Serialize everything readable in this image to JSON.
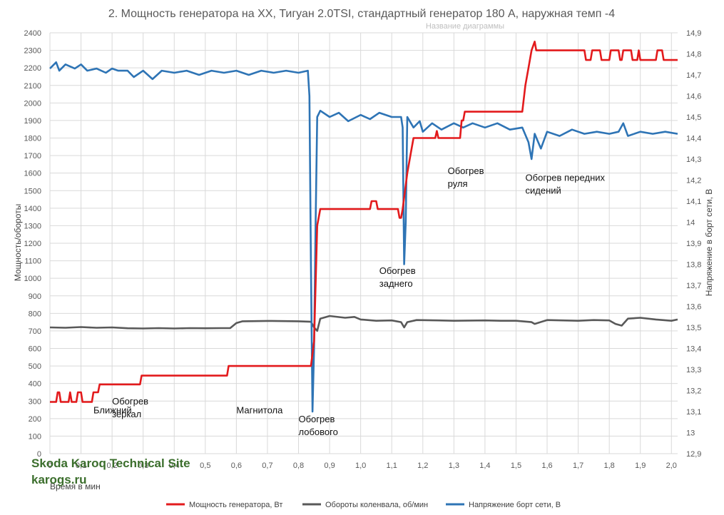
{
  "chart_data": {
    "type": "line",
    "title": "2. Мощность генератора на ХХ, Тигуан 2.0TSI, стандартный генератор 180 А, наружная темп -4",
    "ghost_title": "Название диаграммы",
    "xlabel": "Время в мин",
    "ylabel": "Мощность/обороты",
    "y2label": "Напряжение в борт сети, В",
    "xlim": [
      0,
      2.02
    ],
    "ylim": [
      0,
      2400
    ],
    "y2lim": [
      12.9,
      14.9
    ],
    "x_ticks": [
      "0",
      "0,1",
      "0,2",
      "0,3",
      "0,4",
      "0,5",
      "0,6",
      "0,7",
      "0,8",
      "0,9",
      "1,0",
      "1,1",
      "1,2",
      "1,3",
      "1,4",
      "1,5",
      "1,6",
      "1,7",
      "1,8",
      "1,9",
      "2,0"
    ],
    "y_ticks": [
      "0",
      "100",
      "200",
      "300",
      "400",
      "500",
      "600",
      "700",
      "800",
      "900",
      "1000",
      "1100",
      "1200",
      "1300",
      "1400",
      "1500",
      "1600",
      "1700",
      "1800",
      "1900",
      "2000",
      "2100",
      "2200",
      "2300",
      "2400"
    ],
    "y2_ticks": [
      "12,9",
      "13",
      "13,1",
      "13,2",
      "13,3",
      "13,4",
      "13,5",
      "13,6",
      "13,7",
      "13,8",
      "13,9",
      "14",
      "14,1",
      "14,2",
      "14,3",
      "14,4",
      "14,5",
      "14,6",
      "14,7",
      "14,8",
      "14,9"
    ],
    "grid": true,
    "legend_position": "bottom",
    "series": [
      {
        "name": "Мощность генератора, Вт",
        "axis": "left",
        "color": "#e31a1c",
        "points": [
          [
            0,
            295
          ],
          [
            0.02,
            295
          ],
          [
            0.025,
            350
          ],
          [
            0.03,
            350
          ],
          [
            0.035,
            295
          ],
          [
            0.06,
            295
          ],
          [
            0.065,
            350
          ],
          [
            0.07,
            295
          ],
          [
            0.085,
            295
          ],
          [
            0.09,
            350
          ],
          [
            0.1,
            350
          ],
          [
            0.105,
            295
          ],
          [
            0.135,
            295
          ],
          [
            0.14,
            350
          ],
          [
            0.155,
            350
          ],
          [
            0.16,
            395
          ],
          [
            0.29,
            395
          ],
          [
            0.295,
            445
          ],
          [
            0.57,
            445
          ],
          [
            0.575,
            500
          ],
          [
            0.84,
            500
          ],
          [
            0.85,
            640
          ],
          [
            0.86,
            1300
          ],
          [
            0.87,
            1395
          ],
          [
            1.03,
            1395
          ],
          [
            1.035,
            1440
          ],
          [
            1.05,
            1440
          ],
          [
            1.055,
            1395
          ],
          [
            1.12,
            1395
          ],
          [
            1.125,
            1345
          ],
          [
            1.13,
            1345
          ],
          [
            1.135,
            1395
          ],
          [
            1.15,
            1600
          ],
          [
            1.16,
            1700
          ],
          [
            1.17,
            1800
          ],
          [
            1.24,
            1800
          ],
          [
            1.245,
            1840
          ],
          [
            1.25,
            1800
          ],
          [
            1.32,
            1800
          ],
          [
            1.325,
            1900
          ],
          [
            1.33,
            1900
          ],
          [
            1.335,
            1950
          ],
          [
            1.52,
            1950
          ],
          [
            1.53,
            2100
          ],
          [
            1.54,
            2200
          ],
          [
            1.55,
            2300
          ],
          [
            1.56,
            2350
          ],
          [
            1.565,
            2300
          ],
          [
            1.72,
            2300
          ],
          [
            1.725,
            2245
          ],
          [
            1.74,
            2245
          ],
          [
            1.745,
            2300
          ],
          [
            1.77,
            2300
          ],
          [
            1.775,
            2245
          ],
          [
            1.8,
            2245
          ],
          [
            1.805,
            2300
          ],
          [
            1.83,
            2300
          ],
          [
            1.835,
            2245
          ],
          [
            1.84,
            2245
          ],
          [
            1.845,
            2300
          ],
          [
            1.87,
            2300
          ],
          [
            1.875,
            2245
          ],
          [
            1.89,
            2245
          ],
          [
            1.895,
            2300
          ],
          [
            1.9,
            2245
          ],
          [
            1.95,
            2245
          ],
          [
            1.955,
            2300
          ],
          [
            1.97,
            2300
          ],
          [
            1.975,
            2245
          ],
          [
            2.02,
            2245
          ]
        ]
      },
      {
        "name": "Обороты коленвала, об/мин",
        "axis": "left",
        "color": "#595959",
        "points": [
          [
            0,
            720
          ],
          [
            0.05,
            718
          ],
          [
            0.1,
            722
          ],
          [
            0.15,
            718
          ],
          [
            0.2,
            720
          ],
          [
            0.25,
            715
          ],
          [
            0.3,
            714
          ],
          [
            0.35,
            716
          ],
          [
            0.4,
            714
          ],
          [
            0.45,
            716
          ],
          [
            0.5,
            715
          ],
          [
            0.55,
            716
          ],
          [
            0.58,
            716
          ],
          [
            0.6,
            745
          ],
          [
            0.62,
            755
          ],
          [
            0.7,
            757
          ],
          [
            0.8,
            755
          ],
          [
            0.84,
            752
          ],
          [
            0.85,
            720
          ],
          [
            0.86,
            700
          ],
          [
            0.87,
            770
          ],
          [
            0.9,
            785
          ],
          [
            0.95,
            775
          ],
          [
            0.98,
            780
          ],
          [
            1.0,
            765
          ],
          [
            1.05,
            758
          ],
          [
            1.1,
            760
          ],
          [
            1.13,
            750
          ],
          [
            1.14,
            720
          ],
          [
            1.15,
            750
          ],
          [
            1.18,
            762
          ],
          [
            1.25,
            760
          ],
          [
            1.3,
            758
          ],
          [
            1.4,
            760
          ],
          [
            1.45,
            758
          ],
          [
            1.5,
            758
          ],
          [
            1.55,
            750
          ],
          [
            1.56,
            740
          ],
          [
            1.6,
            762
          ],
          [
            1.65,
            760
          ],
          [
            1.7,
            758
          ],
          [
            1.75,
            762
          ],
          [
            1.8,
            760
          ],
          [
            1.82,
            740
          ],
          [
            1.84,
            730
          ],
          [
            1.86,
            770
          ],
          [
            1.9,
            775
          ],
          [
            1.95,
            765
          ],
          [
            2.0,
            758
          ],
          [
            2.02,
            765
          ]
        ]
      },
      {
        "name": "Напряжение борт сети, В",
        "axis": "right",
        "color": "#2e74b5",
        "points": [
          [
            0,
            14.73
          ],
          [
            0.02,
            14.76
          ],
          [
            0.03,
            14.72
          ],
          [
            0.05,
            14.75
          ],
          [
            0.08,
            14.73
          ],
          [
            0.1,
            14.75
          ],
          [
            0.12,
            14.72
          ],
          [
            0.15,
            14.73
          ],
          [
            0.18,
            14.71
          ],
          [
            0.2,
            14.73
          ],
          [
            0.22,
            14.72
          ],
          [
            0.25,
            14.72
          ],
          [
            0.27,
            14.69
          ],
          [
            0.3,
            14.72
          ],
          [
            0.33,
            14.68
          ],
          [
            0.36,
            14.72
          ],
          [
            0.4,
            14.71
          ],
          [
            0.44,
            14.72
          ],
          [
            0.48,
            14.7
          ],
          [
            0.52,
            14.72
          ],
          [
            0.56,
            14.71
          ],
          [
            0.6,
            14.72
          ],
          [
            0.64,
            14.7
          ],
          [
            0.68,
            14.72
          ],
          [
            0.72,
            14.71
          ],
          [
            0.76,
            14.72
          ],
          [
            0.8,
            14.71
          ],
          [
            0.83,
            14.72
          ],
          [
            0.835,
            14.6
          ],
          [
            0.84,
            13.8
          ],
          [
            0.845,
            13.1
          ],
          [
            0.85,
            13.4
          ],
          [
            0.855,
            14.0
          ],
          [
            0.86,
            14.5
          ],
          [
            0.87,
            14.53
          ],
          [
            0.9,
            14.5
          ],
          [
            0.93,
            14.52
          ],
          [
            0.96,
            14.48
          ],
          [
            1.0,
            14.51
          ],
          [
            1.03,
            14.49
          ],
          [
            1.06,
            14.52
          ],
          [
            1.1,
            14.5
          ],
          [
            1.13,
            14.5
          ],
          [
            1.135,
            14.45
          ],
          [
            1.14,
            13.8
          ],
          [
            1.145,
            14.0
          ],
          [
            1.15,
            14.5
          ],
          [
            1.17,
            14.45
          ],
          [
            1.19,
            14.48
          ],
          [
            1.2,
            14.43
          ],
          [
            1.23,
            14.47
          ],
          [
            1.26,
            14.44
          ],
          [
            1.3,
            14.47
          ],
          [
            1.33,
            14.45
          ],
          [
            1.36,
            14.47
          ],
          [
            1.4,
            14.45
          ],
          [
            1.44,
            14.47
          ],
          [
            1.48,
            14.44
          ],
          [
            1.52,
            14.45
          ],
          [
            1.54,
            14.38
          ],
          [
            1.55,
            14.3
          ],
          [
            1.56,
            14.42
          ],
          [
            1.58,
            14.35
          ],
          [
            1.6,
            14.43
          ],
          [
            1.64,
            14.41
          ],
          [
            1.68,
            14.44
          ],
          [
            1.72,
            14.42
          ],
          [
            1.76,
            14.43
          ],
          [
            1.8,
            14.42
          ],
          [
            1.83,
            14.43
          ],
          [
            1.845,
            14.47
          ],
          [
            1.86,
            14.41
          ],
          [
            1.9,
            14.43
          ],
          [
            1.94,
            14.42
          ],
          [
            1.98,
            14.43
          ],
          [
            2.02,
            14.42
          ]
        ]
      }
    ],
    "annotations": [
      {
        "lines": [
          "Ближний"
        ],
        "x": 0.14,
        "y": 230
      },
      {
        "lines": [
          "Обогрев",
          "зеркал"
        ],
        "x": 0.2,
        "y": 280
      },
      {
        "lines": [
          "Магнитола"
        ],
        "x": 0.6,
        "y": 230
      },
      {
        "lines": [
          "Обогрев",
          "лобового"
        ],
        "x": 0.8,
        "y": 180
      },
      {
        "lines": [
          "Обогрев",
          "заднего"
        ],
        "x": 1.06,
        "y": 1025
      },
      {
        "lines": [
          "Обогрев",
          "руля"
        ],
        "x": 1.28,
        "y": 1595
      },
      {
        "lines": [
          "Обогрев передних",
          "сидений"
        ],
        "x": 1.53,
        "y": 1555
      }
    ]
  },
  "watermark": {
    "line1": "Skoda Karoq Technical Site",
    "line2": "karogs.ru"
  }
}
